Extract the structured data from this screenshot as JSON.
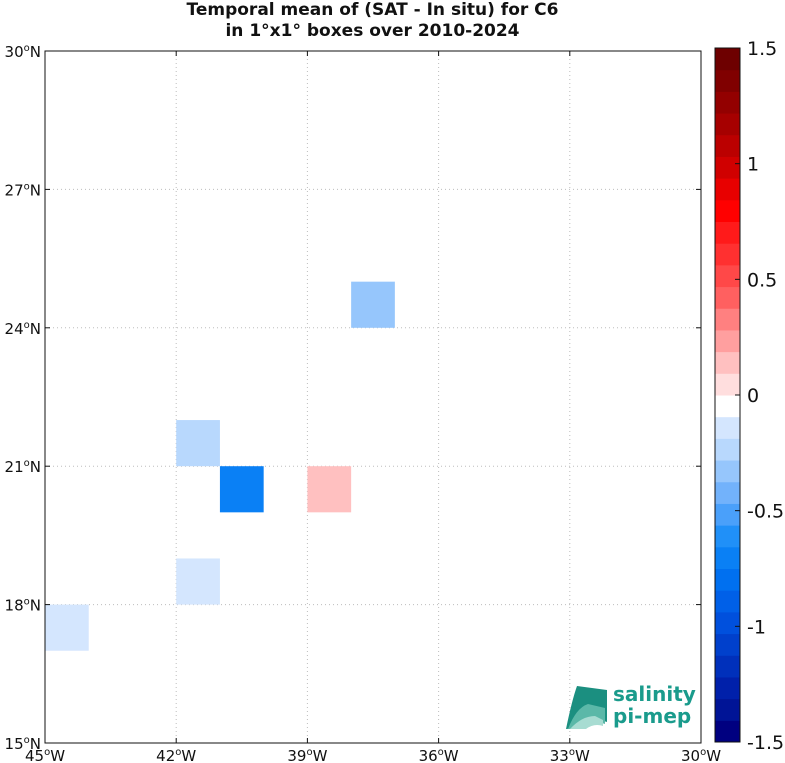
{
  "title": {
    "line1": "Temporal mean of (SAT - In situ) for C6",
    "line2": "in 1°x1° boxes over 2010-2024"
  },
  "map": {
    "lon_range": [
      -45,
      -30
    ],
    "lat_range": [
      15,
      30
    ],
    "lon_ticks": [
      {
        "value": -45,
        "deg": "45",
        "hemi": "W"
      },
      {
        "value": -42,
        "deg": "42",
        "hemi": "W"
      },
      {
        "value": -39,
        "deg": "39",
        "hemi": "W"
      },
      {
        "value": -36,
        "deg": "36",
        "hemi": "W"
      },
      {
        "value": -33,
        "deg": "33",
        "hemi": "W"
      },
      {
        "value": -30,
        "deg": "30",
        "hemi": "W"
      }
    ],
    "lat_ticks": [
      {
        "value": 15,
        "deg": "15",
        "hemi": "N"
      },
      {
        "value": 18,
        "deg": "18",
        "hemi": "N"
      },
      {
        "value": 21,
        "deg": "21",
        "hemi": "N"
      },
      {
        "value": 24,
        "deg": "24",
        "hemi": "N"
      },
      {
        "value": 27,
        "deg": "27",
        "hemi": "N"
      },
      {
        "value": 30,
        "deg": "30",
        "hemi": "N"
      }
    ],
    "grid": "dotted",
    "boxes": [
      {
        "lon": -38,
        "lat": 24,
        "value": -0.35
      },
      {
        "lon": -42,
        "lat": 21,
        "value": -0.25
      },
      {
        "lon": -41,
        "lat": 20,
        "value": -0.75
      },
      {
        "lon": -39,
        "lat": 20,
        "value": 0.15
      },
      {
        "lon": -42,
        "lat": 18,
        "value": -0.15
      },
      {
        "lon": -45,
        "lat": 17,
        "value": -0.15
      }
    ]
  },
  "colorbar": {
    "range": [
      -1.5,
      1.5
    ],
    "ticks": [
      {
        "value": 1.5,
        "label": "1.5"
      },
      {
        "value": 1,
        "label": "1"
      },
      {
        "value": 0.5,
        "label": "0.5"
      },
      {
        "value": 0,
        "label": "0"
      },
      {
        "value": -0.5,
        "label": "-0.5"
      },
      {
        "value": -1,
        "label": "-1"
      },
      {
        "value": -1.5,
        "label": "-1.5"
      }
    ],
    "colors": [
      "#000080",
      "#001496",
      "#0020aa",
      "#0030bb",
      "#0040cc",
      "#0050dd",
      "#0060e8",
      "#0070f0",
      "#0a80f5",
      "#2090f8",
      "#4aa0fa",
      "#72b2fb",
      "#96c6fc",
      "#b8d8fd",
      "#d4e6fe",
      "#ffffff",
      "#ffdede",
      "#ffc0c0",
      "#ff9f9f",
      "#ff8080",
      "#ff6060",
      "#ff4848",
      "#ff3030",
      "#ff1a1a",
      "#ff0000",
      "#e80000",
      "#d00000",
      "#bb0000",
      "#a60000",
      "#930000",
      "#800000",
      "#6e0000"
    ]
  },
  "logo": {
    "line1": "salinity",
    "line2": "pi-mep"
  }
}
